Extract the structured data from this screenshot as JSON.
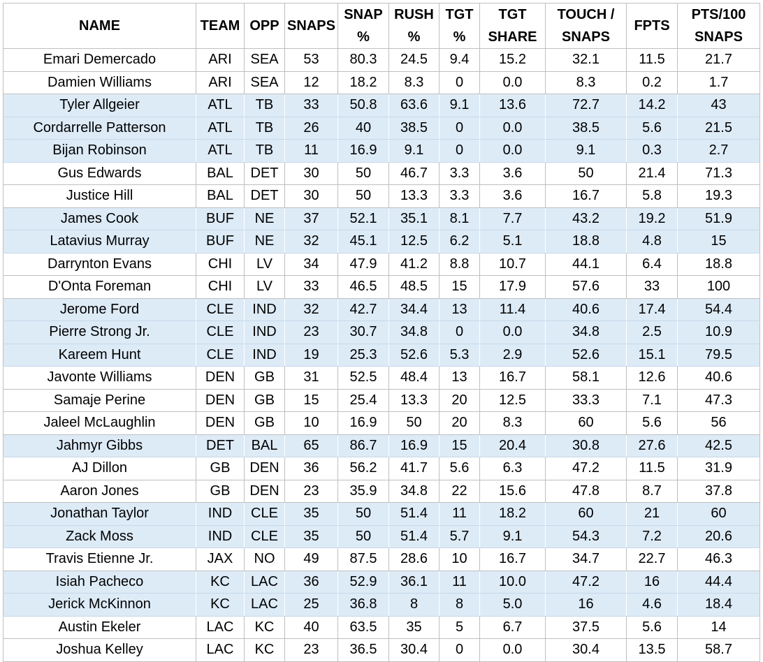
{
  "headers": [
    "NAME",
    "TEAM",
    "OPP",
    "SNAPS",
    "SNAP %",
    "RUSH %",
    "TGT %",
    "TGT SHARE",
    "TOUCH / SNAPS",
    "FPTS",
    "PTS/100 SNAPS"
  ],
  "rows": [
    {
      "shaded": false,
      "cells": [
        "Emari Demercado",
        "ARI",
        "SEA",
        "53",
        "80.3",
        "24.5",
        "9.4",
        "15.2",
        "32.1",
        "11.5",
        "21.7"
      ]
    },
    {
      "shaded": false,
      "cells": [
        "Damien Williams",
        "ARI",
        "SEA",
        "12",
        "18.2",
        "8.3",
        "0",
        "0.0",
        "8.3",
        "0.2",
        "1.7"
      ]
    },
    {
      "shaded": true,
      "cells": [
        "Tyler Allgeier",
        "ATL",
        "TB",
        "33",
        "50.8",
        "63.6",
        "9.1",
        "13.6",
        "72.7",
        "14.2",
        "43"
      ]
    },
    {
      "shaded": true,
      "cells": [
        "Cordarrelle Patterson",
        "ATL",
        "TB",
        "26",
        "40",
        "38.5",
        "0",
        "0.0",
        "38.5",
        "5.6",
        "21.5"
      ]
    },
    {
      "shaded": true,
      "cells": [
        "Bijan Robinson",
        "ATL",
        "TB",
        "11",
        "16.9",
        "9.1",
        "0",
        "0.0",
        "9.1",
        "0.3",
        "2.7"
      ]
    },
    {
      "shaded": false,
      "cells": [
        "Gus Edwards",
        "BAL",
        "DET",
        "30",
        "50",
        "46.7",
        "3.3",
        "3.6",
        "50",
        "21.4",
        "71.3"
      ]
    },
    {
      "shaded": false,
      "cells": [
        "Justice Hill",
        "BAL",
        "DET",
        "30",
        "50",
        "13.3",
        "3.3",
        "3.6",
        "16.7",
        "5.8",
        "19.3"
      ]
    },
    {
      "shaded": true,
      "cells": [
        "James Cook",
        "BUF",
        "NE",
        "37",
        "52.1",
        "35.1",
        "8.1",
        "7.7",
        "43.2",
        "19.2",
        "51.9"
      ]
    },
    {
      "shaded": true,
      "cells": [
        "Latavius Murray",
        "BUF",
        "NE",
        "32",
        "45.1",
        "12.5",
        "6.2",
        "5.1",
        "18.8",
        "4.8",
        "15"
      ]
    },
    {
      "shaded": false,
      "cells": [
        "Darrynton Evans",
        "CHI",
        "LV",
        "34",
        "47.9",
        "41.2",
        "8.8",
        "10.7",
        "44.1",
        "6.4",
        "18.8"
      ]
    },
    {
      "shaded": false,
      "cells": [
        "D'Onta Foreman",
        "CHI",
        "LV",
        "33",
        "46.5",
        "48.5",
        "15",
        "17.9",
        "57.6",
        "33",
        "100"
      ]
    },
    {
      "shaded": true,
      "cells": [
        "Jerome Ford",
        "CLE",
        "IND",
        "32",
        "42.7",
        "34.4",
        "13",
        "11.4",
        "40.6",
        "17.4",
        "54.4"
      ]
    },
    {
      "shaded": true,
      "cells": [
        "Pierre Strong Jr.",
        "CLE",
        "IND",
        "23",
        "30.7",
        "34.8",
        "0",
        "0.0",
        "34.8",
        "2.5",
        "10.9"
      ]
    },
    {
      "shaded": true,
      "cells": [
        "Kareem Hunt",
        "CLE",
        "IND",
        "19",
        "25.3",
        "52.6",
        "5.3",
        "2.9",
        "52.6",
        "15.1",
        "79.5"
      ]
    },
    {
      "shaded": false,
      "cells": [
        "Javonte Williams",
        "DEN",
        "GB",
        "31",
        "52.5",
        "48.4",
        "13",
        "16.7",
        "58.1",
        "12.6",
        "40.6"
      ]
    },
    {
      "shaded": false,
      "cells": [
        "Samaje Perine",
        "DEN",
        "GB",
        "15",
        "25.4",
        "13.3",
        "20",
        "12.5",
        "33.3",
        "7.1",
        "47.3"
      ]
    },
    {
      "shaded": false,
      "cells": [
        "Jaleel McLaughlin",
        "DEN",
        "GB",
        "10",
        "16.9",
        "50",
        "20",
        "8.3",
        "60",
        "5.6",
        "56"
      ]
    },
    {
      "shaded": true,
      "cells": [
        "Jahmyr Gibbs",
        "DET",
        "BAL",
        "65",
        "86.7",
        "16.9",
        "15",
        "20.4",
        "30.8",
        "27.6",
        "42.5"
      ]
    },
    {
      "shaded": false,
      "cells": [
        "AJ Dillon",
        "GB",
        "DEN",
        "36",
        "56.2",
        "41.7",
        "5.6",
        "6.3",
        "47.2",
        "11.5",
        "31.9"
      ]
    },
    {
      "shaded": false,
      "cells": [
        "Aaron Jones",
        "GB",
        "DEN",
        "23",
        "35.9",
        "34.8",
        "22",
        "15.6",
        "47.8",
        "8.7",
        "37.8"
      ]
    },
    {
      "shaded": true,
      "cells": [
        "Jonathan Taylor",
        "IND",
        "CLE",
        "35",
        "50",
        "51.4",
        "11",
        "18.2",
        "60",
        "21",
        "60"
      ]
    },
    {
      "shaded": true,
      "cells": [
        "Zack Moss",
        "IND",
        "CLE",
        "35",
        "50",
        "51.4",
        "5.7",
        "9.1",
        "54.3",
        "7.2",
        "20.6"
      ]
    },
    {
      "shaded": false,
      "cells": [
        "Travis Etienne Jr.",
        "JAX",
        "NO",
        "49",
        "87.5",
        "28.6",
        "10",
        "16.7",
        "34.7",
        "22.7",
        "46.3"
      ]
    },
    {
      "shaded": true,
      "cells": [
        "Isiah Pacheco",
        "KC",
        "LAC",
        "36",
        "52.9",
        "36.1",
        "11",
        "10.0",
        "47.2",
        "16",
        "44.4"
      ]
    },
    {
      "shaded": true,
      "cells": [
        "Jerick McKinnon",
        "KC",
        "LAC",
        "25",
        "36.8",
        "8",
        "8",
        "5.0",
        "16",
        "4.6",
        "18.4"
      ]
    },
    {
      "shaded": false,
      "cells": [
        "Austin Ekeler",
        "LAC",
        "KC",
        "40",
        "63.5",
        "35",
        "5",
        "6.7",
        "37.5",
        "5.6",
        "14"
      ]
    },
    {
      "shaded": false,
      "cells": [
        "Joshua Kelley",
        "LAC",
        "KC",
        "23",
        "36.5",
        "30.4",
        "0",
        "0.0",
        "30.4",
        "13.5",
        "58.7"
      ]
    }
  ]
}
